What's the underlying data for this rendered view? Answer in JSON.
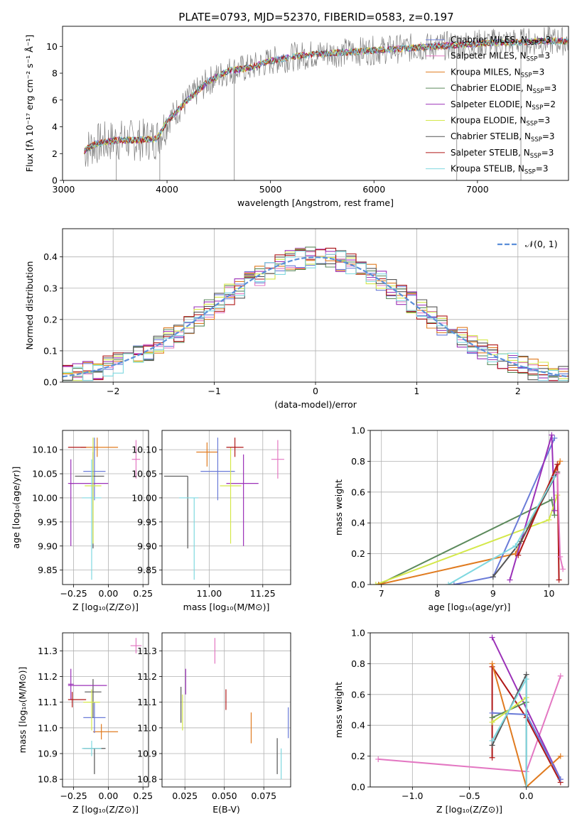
{
  "title": "PLATE=0793, MJD=52370, FIBERID=0583, z=0.197",
  "chart_data": [
    {
      "type": "line",
      "id": "spectrum",
      "title": "PLATE=0793, MJD=52370, FIBERID=0583, z=0.197",
      "xlabel": "wavelength [Angstrom, rest frame]",
      "ylabel": "Flux [fλ 10⁻¹⁷ erg cm⁻² s⁻¹ Å⁻¹]",
      "xlim": [
        2990,
        7880
      ],
      "ylim": [
        0,
        11.5
      ],
      "xticks": [
        3000,
        4000,
        5000,
        6000,
        7000
      ],
      "yticks": [
        0,
        2,
        4,
        6,
        8,
        10
      ],
      "legend_position": "top-right",
      "continuum": {
        "x": [
          3200,
          3300,
          3500,
          3700,
          3900,
          4000,
          4200,
          4400,
          4600,
          4800,
          5000,
          5200,
          5400,
          5600,
          5800,
          6000,
          6200,
          6400,
          6600,
          6800,
          7000,
          7200,
          7400,
          7600,
          7800
        ],
        "y": [
          2.2,
          2.7,
          3.0,
          3.0,
          3.1,
          4.4,
          6.0,
          7.4,
          8.2,
          8.4,
          8.9,
          9.2,
          9.4,
          9.5,
          9.6,
          9.7,
          9.8,
          9.9,
          10.0,
          10.1,
          10.2,
          10.3,
          10.3,
          10.4,
          10.4
        ]
      },
      "series": [
        {
          "name": "Chabrier MILES, Nₛₛₚ=3",
          "label_main": "Chabrier MILES, N",
          "label_sub": "SSP",
          "label_tail": "=3",
          "color": "#6a7bd8"
        },
        {
          "name": "Salpeter MILES, Nₛₛₚ=3",
          "label_main": "Salpeter MILES, N",
          "label_sub": "SSP",
          "label_tail": "=3",
          "color": "#e377c2"
        },
        {
          "name": "Kroupa MILES, Nₛₛₚ=3",
          "label_main": "Kroupa MILES, N",
          "label_sub": "SSP",
          "label_tail": "=3",
          "color": "#e07b20"
        },
        {
          "name": "Chabrier ELODIE, Nₛₛₚ=3",
          "label_main": "Chabrier ELODIE, N",
          "label_sub": "SSP",
          "label_tail": "=3",
          "color": "#5c8a5c"
        },
        {
          "name": "Salpeter ELODIE, Nₛₛₚ=2",
          "label_main": "Salpeter ELODIE, N",
          "label_sub": "SSP",
          "label_tail": "=2",
          "color": "#9b30b8"
        },
        {
          "name": "Kroupa ELODIE, Nₛₛₚ=3",
          "label_main": "Kroupa ELODIE, N",
          "label_sub": "SSP",
          "label_tail": "=3",
          "color": "#d4e84a"
        },
        {
          "name": "Chabrier STELIB, Nₛₛₚ=3",
          "label_main": "Chabrier STELIB, N",
          "label_sub": "SSP",
          "label_tail": "=3",
          "color": "#555555"
        },
        {
          "name": "Salpeter STELIB, Nₛₛₚ=3",
          "label_main": "Salpeter STELIB, N",
          "label_sub": "SSP",
          "label_tail": "=3",
          "color": "#b01818"
        },
        {
          "name": "Kroupa STELIB, Nₛₛₚ=3",
          "label_main": "Kroupa STELIB, N",
          "label_sub": "SSP",
          "label_tail": "=3",
          "color": "#7fd8e0"
        }
      ]
    },
    {
      "type": "histogram",
      "id": "residuals",
      "xlabel": "(data-model)/error",
      "ylabel": "Normed distribution",
      "xlim": [
        -2.5,
        2.5
      ],
      "ylim": [
        0,
        0.49
      ],
      "xticks": [
        -2,
        -1,
        0,
        1,
        2
      ],
      "yticks": [
        0.0,
        0.1,
        0.2,
        0.3,
        0.4
      ],
      "grid": true,
      "legend_position": "top-right",
      "reference_curve": {
        "name": "N(0,1)",
        "label": "𝒩(0, 1)",
        "color": "#5b8fd9",
        "style": "dashed",
        "mean": 0,
        "sigma": 1
      },
      "bin_width": 0.1
    },
    {
      "type": "errorbar",
      "id": "age-vs-Z",
      "xlabel": "Z [log₁₀(Z/Z⊙)]",
      "ylabel": "age  [log₁₀(age/yr)]",
      "xlim": [
        -0.33,
        0.29
      ],
      "ylim": [
        9.82,
        10.14
      ],
      "xticks": [
        -0.25,
        0.0,
        0.25
      ],
      "yticks": [
        9.85,
        9.9,
        9.95,
        10.0,
        10.05,
        10.1
      ],
      "grid": true,
      "points": [
        {
          "x": -0.08,
          "y": 10.105,
          "xerr": [
            0.12,
            0.15
          ],
          "yerr": [
            0.02,
            0.02
          ],
          "color": "#e07b20"
        },
        {
          "x": -0.1,
          "y": 10.055,
          "xerr": [
            0.08,
            0.08
          ],
          "yerr": [
            0.06,
            0.07
          ],
          "color": "#6a7bd8"
        },
        {
          "x": -0.11,
          "y": 10.045,
          "xerr": [
            0.13,
            0.08
          ],
          "yerr": [
            0.15,
            0.05
          ],
          "color": "#555555"
        },
        {
          "x": -0.27,
          "y": 10.03,
          "xerr": [
            0.02,
            0.02
          ],
          "yerr": [
            0.13,
            0.05
          ],
          "color": "#9b30b8"
        },
        {
          "x": -0.18,
          "y": 10.03,
          "xerr": [
            0.1,
            0.18
          ],
          "yerr": [
            0.0,
            0.0
          ],
          "color": "#9b30b8"
        },
        {
          "x": -0.12,
          "y": 10.0,
          "xerr": [
            0.07,
            0.07
          ],
          "yerr": [
            0.17,
            0.08
          ],
          "color": "#7fd8e0"
        },
        {
          "x": -0.11,
          "y": 10.025,
          "xerr": [
            0.06,
            0.06
          ],
          "yerr": [
            0.12,
            0.1
          ],
          "color": "#d4e84a"
        },
        {
          "x": -0.26,
          "y": 10.105,
          "xerr": [
            0.03,
            0.1
          ],
          "yerr": [
            0.0,
            0.0
          ],
          "color": "#b01818"
        },
        {
          "x": 0.2,
          "y": 10.08,
          "xerr": [
            0.03,
            0.03
          ],
          "yerr": [
            0.04,
            0.04
          ],
          "color": "#e377c2"
        }
      ]
    },
    {
      "type": "errorbar",
      "id": "age-vs-mass",
      "xlabel": "mass [log₁₀(M/M⊙)]",
      "ylabel": "",
      "xlim": [
        10.78,
        11.38
      ],
      "ylim": [
        9.82,
        10.14
      ],
      "xticks": [
        11.0,
        11.25
      ],
      "yticks": [
        9.85,
        9.9,
        9.95,
        10.0,
        10.05,
        10.1
      ],
      "grid": true,
      "points": [
        {
          "x": 10.99,
          "y": 10.095,
          "xerr": [
            0.05,
            0.05
          ],
          "yerr": [
            0.03,
            0.02
          ],
          "color": "#e07b20"
        },
        {
          "x": 11.04,
          "y": 10.055,
          "xerr": [
            0.08,
            0.08
          ],
          "yerr": [
            0.06,
            0.07
          ],
          "color": "#6a7bd8"
        },
        {
          "x": 10.9,
          "y": 10.045,
          "xerr": [
            0.11,
            0.0
          ],
          "yerr": [
            0.15,
            0.0
          ],
          "color": "#555555"
        },
        {
          "x": 11.16,
          "y": 10.03,
          "xerr": [
            0.08,
            0.07
          ],
          "yerr": [
            0.13,
            0.06
          ],
          "color": "#9b30b8"
        },
        {
          "x": 10.93,
          "y": 10.0,
          "xerr": [
            0.07,
            0.02
          ],
          "yerr": [
            0.17,
            0.0
          ],
          "color": "#7fd8e0"
        },
        {
          "x": 11.1,
          "y": 10.025,
          "xerr": [
            0.05,
            0.05
          ],
          "yerr": [
            0.12,
            0.08
          ],
          "color": "#d4e84a"
        },
        {
          "x": 11.12,
          "y": 10.105,
          "xerr": [
            0.04,
            0.04
          ],
          "yerr": [
            0.02,
            0.02
          ],
          "color": "#b01818"
        },
        {
          "x": 11.32,
          "y": 10.08,
          "xerr": [
            0.03,
            0.03
          ],
          "yerr": [
            0.04,
            0.04
          ],
          "color": "#e377c2"
        }
      ]
    },
    {
      "type": "line",
      "id": "weight-vs-age",
      "xlabel": "age  [log₁₀(age/yr)]",
      "ylabel": "mass weight",
      "xlim": [
        6.8,
        10.35
      ],
      "ylim": [
        0,
        1
      ],
      "xticks": [
        7,
        8,
        9,
        10
      ],
      "yticks": [
        0.0,
        0.2,
        0.4,
        0.6,
        0.8,
        1.0
      ],
      "grid": true,
      "series": [
        {
          "color": "#5c8a5c",
          "x": [
            6.95,
            10.05,
            10.1
          ],
          "y": [
            0.0,
            0.55,
            0.45
          ]
        },
        {
          "color": "#d4e84a",
          "x": [
            6.9,
            10.0,
            10.15
          ],
          "y": [
            0.0,
            0.42,
            0.58
          ]
        },
        {
          "color": "#e07b20",
          "x": [
            6.95,
            9.4,
            10.2
          ],
          "y": [
            0.0,
            0.2,
            0.8
          ]
        },
        {
          "color": "#6a7bd8",
          "x": [
            8.3,
            9.0,
            10.1
          ],
          "y": [
            0.0,
            0.05,
            0.95
          ]
        },
        {
          "color": "#9b30b8",
          "x": [
            9.3,
            10.05,
            10.1
          ],
          "y": [
            0.03,
            0.97,
            0.48
          ]
        },
        {
          "color": "#555555",
          "x": [
            9.0,
            9.5,
            10.15
          ],
          "y": [
            0.05,
            0.28,
            0.73
          ]
        },
        {
          "color": "#b01818",
          "x": [
            9.45,
            10.15,
            10.18
          ],
          "y": [
            0.19,
            0.78,
            0.03
          ]
        },
        {
          "color": "#7fd8e0",
          "x": [
            8.2,
            9.4,
            10.1
          ],
          "y": [
            0.0,
            0.25,
            0.7
          ]
        },
        {
          "color": "#e377c2",
          "x": [
            10.15,
            10.2,
            10.25
          ],
          "y": [
            0.72,
            0.18,
            0.1
          ]
        }
      ]
    },
    {
      "type": "errorbar",
      "id": "mass-vs-Z",
      "xlabel": "Z [log₁₀(Z/Z⊙)]",
      "ylabel": "mass [log₁₀(M/M⊙)]",
      "xlim": [
        -0.33,
        0.29
      ],
      "ylim": [
        10.77,
        11.37
      ],
      "xticks": [
        -0.25,
        0.0,
        0.25
      ],
      "yticks": [
        10.8,
        10.9,
        11.0,
        11.1,
        11.2,
        11.3
      ],
      "grid": true,
      "points": [
        {
          "x": -0.05,
          "y": 10.985,
          "xerr": [
            0.06,
            0.12
          ],
          "yerr": [
            0.03,
            0.03
          ],
          "color": "#e07b20"
        },
        {
          "x": -0.1,
          "y": 11.04,
          "xerr": [
            0.08,
            0.08
          ],
          "yerr": [
            0.06,
            0.06
          ],
          "color": "#6a7bd8"
        },
        {
          "x": -0.11,
          "y": 11.14,
          "xerr": [
            0.06,
            0.06
          ],
          "yerr": [
            0.1,
            0.05
          ],
          "color": "#555555"
        },
        {
          "x": -0.1,
          "y": 10.92,
          "xerr": [
            0.08,
            0.08
          ],
          "yerr": [
            0.1,
            0.0
          ],
          "color": "#555555"
        },
        {
          "x": -0.19,
          "y": 11.165,
          "xerr": [
            0.1,
            0.18
          ],
          "yerr": [
            0.0,
            0.0
          ],
          "color": "#9b30b8"
        },
        {
          "x": -0.27,
          "y": 11.17,
          "xerr": [
            0.02,
            0.02
          ],
          "yerr": [
            0.06,
            0.06
          ],
          "color": "#9b30b8"
        },
        {
          "x": -0.12,
          "y": 10.92,
          "xerr": [
            0.07,
            0.07
          ],
          "yerr": [
            0.03,
            0.03
          ],
          "color": "#7fd8e0"
        },
        {
          "x": -0.12,
          "y": 11.1,
          "xerr": [
            0.06,
            0.06
          ],
          "yerr": [
            0.11,
            0.05
          ],
          "color": "#d4e84a"
        },
        {
          "x": -0.26,
          "y": 11.11,
          "xerr": [
            0.03,
            0.1
          ],
          "yerr": [
            0.03,
            0.03
          ],
          "color": "#b01818"
        },
        {
          "x": 0.2,
          "y": 11.32,
          "xerr": [
            0.04,
            0.04
          ],
          "yerr": [
            0.03,
            0.03
          ],
          "color": "#e377c2"
        }
      ]
    },
    {
      "type": "errorbar",
      "id": "mass-vs-ebv",
      "xlabel": "E(B-V)",
      "ylabel": "",
      "xlim": [
        0.0105,
        0.092
      ],
      "ylim": [
        10.77,
        11.37
      ],
      "xticks": [
        0.025,
        0.05,
        0.075
      ],
      "yticks": [
        10.8,
        10.9,
        11.0,
        11.1,
        11.2,
        11.3
      ],
      "grid": true,
      "points": [
        {
          "x": 0.0225,
          "y": 11.09,
          "xerr": [
            0,
            0
          ],
          "yerr": [
            0.07,
            0.07
          ],
          "color": "#555555"
        },
        {
          "x": 0.0235,
          "y": 11.06,
          "xerr": [
            0,
            0
          ],
          "yerr": [
            0.07,
            0.07
          ],
          "color": "#d4e84a"
        },
        {
          "x": 0.0255,
          "y": 11.18,
          "xerr": [
            0,
            0
          ],
          "yerr": [
            0.05,
            0.05
          ],
          "color": "#9b30b8"
        },
        {
          "x": 0.044,
          "y": 11.3,
          "xerr": [
            0,
            0
          ],
          "yerr": [
            0.05,
            0.05
          ],
          "color": "#e377c2"
        },
        {
          "x": 0.051,
          "y": 11.11,
          "xerr": [
            0,
            0
          ],
          "yerr": [
            0.04,
            0.04
          ],
          "color": "#b01818"
        },
        {
          "x": 0.067,
          "y": 11.0,
          "xerr": [
            0,
            0
          ],
          "yerr": [
            0.06,
            0.06
          ],
          "color": "#e07b20"
        },
        {
          "x": 0.0835,
          "y": 10.89,
          "xerr": [
            0,
            0
          ],
          "yerr": [
            0.07,
            0.07
          ],
          "color": "#555555"
        },
        {
          "x": 0.086,
          "y": 10.86,
          "xerr": [
            0,
            0
          ],
          "yerr": [
            0.06,
            0.06
          ],
          "color": "#7fd8e0"
        },
        {
          "x": 0.0905,
          "y": 11.02,
          "xerr": [
            0,
            0
          ],
          "yerr": [
            0.06,
            0.06
          ],
          "color": "#6a7bd8"
        }
      ]
    },
    {
      "type": "line",
      "id": "weight-vs-Z",
      "xlabel": "Z [log₁₀(Z/Z⊙)]",
      "ylabel": "mass weight",
      "xlim": [
        -1.37,
        0.37
      ],
      "ylim": [
        0,
        1
      ],
      "xticks": [
        -1.0,
        -0.5,
        0.0
      ],
      "yticks": [
        0.0,
        0.2,
        0.4,
        0.6,
        0.8,
        1.0
      ],
      "grid": true,
      "series": [
        {
          "color": "#e377c2",
          "x": [
            -1.3,
            0.0,
            0.3
          ],
          "y": [
            0.18,
            0.1,
            0.72
          ]
        },
        {
          "color": "#9b30b8",
          "x": [
            -0.3,
            0.3
          ],
          "y": [
            0.97,
            0.05
          ]
        },
        {
          "color": "#b01818",
          "x": [
            -0.3,
            -0.3,
            0.0,
            0.3
          ],
          "y": [
            0.19,
            0.78,
            0.45,
            0.03
          ]
        },
        {
          "color": "#e07b20",
          "x": [
            -0.3,
            0.0,
            0.3
          ],
          "y": [
            0.8,
            0.0,
            0.2
          ]
        },
        {
          "color": "#555555",
          "x": [
            -0.3,
            0.0,
            0.0
          ],
          "y": [
            0.27,
            0.73,
            0.0
          ]
        },
        {
          "color": "#6a7bd8",
          "x": [
            -0.3,
            0.0,
            0.3
          ],
          "y": [
            0.48,
            0.47,
            0.05
          ]
        },
        {
          "color": "#5c8a5c",
          "x": [
            -0.3,
            0.0
          ],
          "y": [
            0.45,
            0.55
          ]
        },
        {
          "color": "#d4e84a",
          "x": [
            -0.3,
            0.0
          ],
          "y": [
            0.42,
            0.58
          ]
        },
        {
          "color": "#7fd8e0",
          "x": [
            -0.3,
            0.0,
            0.0
          ],
          "y": [
            0.3,
            0.7,
            0.0
          ]
        }
      ]
    }
  ]
}
